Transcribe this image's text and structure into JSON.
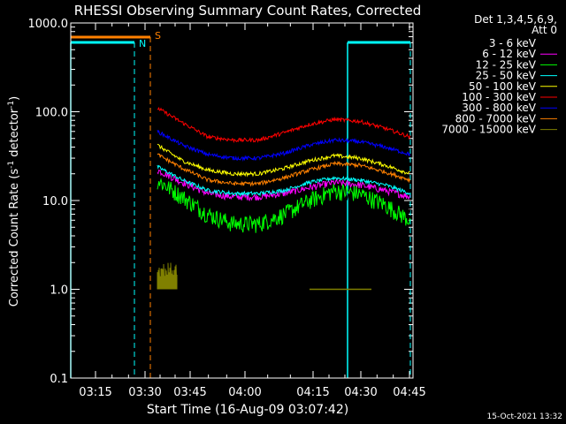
{
  "chart_data": {
    "type": "line",
    "title": "RHESSI Observing Summary Count Rates, Corrected",
    "xlabel": "Start Time (16-Aug-09 03:07:42)",
    "ylabel_main": "Corrected Count Rate (s",
    "ylabel_sup1": "-1",
    "ylabel_mid": " detector",
    "ylabel_sup2": "-1",
    "ylabel_end": ")",
    "y_scale": "log",
    "ylim": [
      0.1,
      1000
    ],
    "x_tick_labels": [
      "03:15",
      "03:30",
      "03:45",
      "04:00",
      "04:15",
      "04:30",
      "04:45"
    ],
    "y_tick_labels": [
      "0.1",
      "1.0",
      "10.0",
      "100.0",
      "1000.0"
    ],
    "legend_header_1": "Det 1,3,4,5,6,9,",
    "legend_header_2": "Att 0",
    "timestamp": "15-Oct-2021 13:32",
    "annotations": {
      "saa": "S",
      "night": "N"
    },
    "series": [
      {
        "name": "3 - 6 keV",
        "color": "#000000",
        "values": [
          16,
          11,
          8,
          7,
          7.5,
          9,
          12,
          13,
          11,
          9,
          8
        ]
      },
      {
        "name": "6 - 12 keV",
        "color": "#ff00ff",
        "values": [
          22,
          16,
          12,
          11,
          11,
          12,
          14,
          16,
          15,
          13,
          11
        ]
      },
      {
        "name": "12 - 25 keV",
        "color": "#00ff00",
        "values": [
          17,
          11,
          7,
          5.5,
          5.5,
          7,
          10,
          13,
          12,
          9,
          6
        ]
      },
      {
        "name": "25 - 50 keV",
        "color": "#00ffff",
        "values": [
          24,
          17,
          13,
          12,
          12,
          13,
          16,
          18,
          17,
          15,
          12
        ]
      },
      {
        "name": "50 - 100 keV",
        "color": "#ffff00",
        "values": [
          42,
          28,
          22,
          20,
          20,
          23,
          28,
          32,
          30,
          25,
          20
        ]
      },
      {
        "name": "100 - 300 keV",
        "color": "#ff0000",
        "values": [
          110,
          75,
          52,
          48,
          48,
          58,
          72,
          82,
          78,
          65,
          52
        ]
      },
      {
        "name": "300 - 800 keV",
        "color": "#0000ff",
        "values": [
          60,
          42,
          33,
          30,
          30,
          34,
          42,
          48,
          46,
          40,
          33
        ]
      },
      {
        "name": "800 - 7000 keV",
        "color": "#ff8000",
        "values": [
          33,
          23,
          17,
          15.5,
          15.5,
          18,
          22,
          26,
          25,
          21,
          17
        ]
      },
      {
        "name": "7000 - 15000 keV",
        "color": "#808000",
        "values": [
          1.4,
          1.0
        ]
      }
    ]
  }
}
